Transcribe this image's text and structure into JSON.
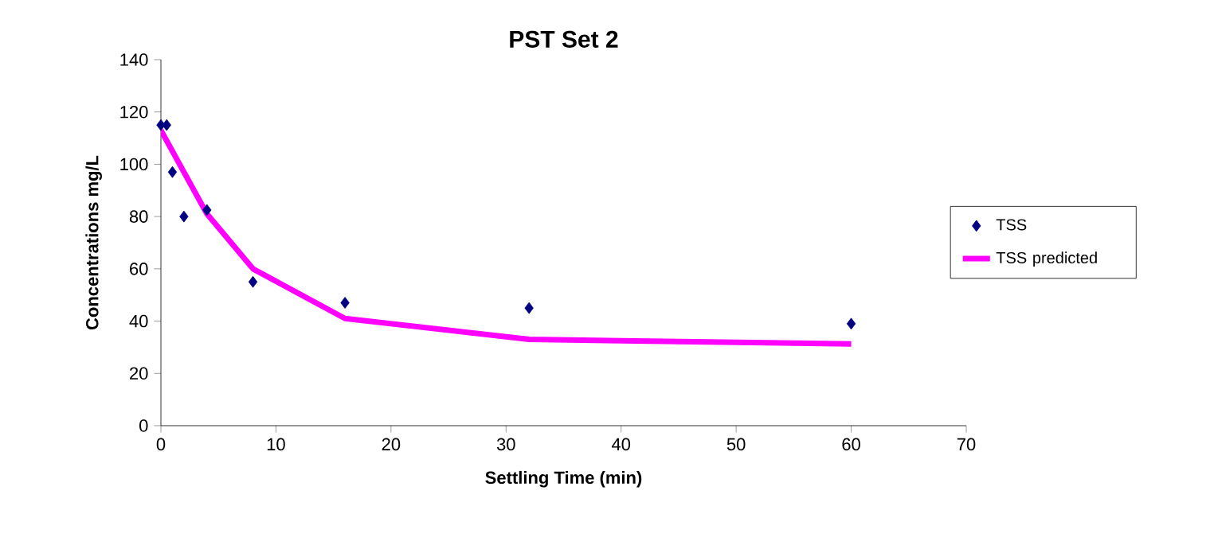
{
  "chart_data": {
    "type": "scatter",
    "title": "PST Set 2",
    "xlabel": "Settling Time (min)",
    "ylabel": "Concentrations mg/L",
    "series": [
      {
        "name": "TSS",
        "marker": "diamond",
        "color": "#000080",
        "x": [
          0,
          0.5,
          1,
          2,
          4,
          8,
          16,
          32,
          60
        ],
        "values": [
          115,
          115,
          97,
          80,
          82.5,
          55,
          47,
          45,
          39
        ]
      },
      {
        "name": "TSS predicted",
        "type": "line",
        "marker": "none",
        "line_style": "solid",
        "color": "#ff00ff",
        "x": [
          0,
          4,
          8,
          16,
          32,
          60
        ],
        "values": [
          113,
          81,
          60,
          41,
          33,
          31.3
        ]
      }
    ],
    "xlim": [
      0,
      70
    ],
    "ylim": [
      0,
      140
    ],
    "xticks": [
      0,
      10,
      20,
      30,
      40,
      50,
      60,
      70
    ],
    "yticks": [
      0,
      20,
      40,
      60,
      80,
      100,
      120,
      140
    ],
    "grid": false,
    "legend": "right"
  }
}
